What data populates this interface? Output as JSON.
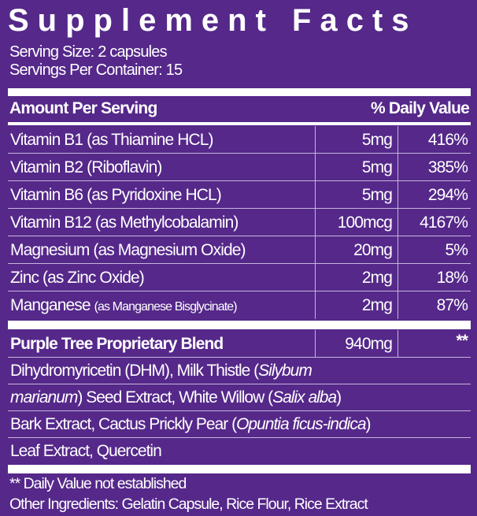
{
  "title": "Supplement Facts",
  "serving_size": "Serving Size: 2 capsules",
  "servings_per_container": "Servings Per Container: 15",
  "header": {
    "amount": "Amount Per Serving",
    "dv": "% Daily Value"
  },
  "nutrients": [
    {
      "name": "Vitamin B1 (as Thiamine HCL)",
      "amount": "5mg",
      "dv": "416%"
    },
    {
      "name": "Vitamin B2 (Riboflavin)",
      "amount": "5mg",
      "dv": "385%"
    },
    {
      "name": "Vitamin B6 (as Pyridoxine HCL)",
      "amount": "5mg",
      "dv": "294%"
    },
    {
      "name": "Vitamin B12 (as Methylcobalamin)",
      "amount": "100mcg",
      "dv": "4167%"
    },
    {
      "name": "Magnesium (as Magnesium Oxide)",
      "amount": "20mg",
      "dv": "5%"
    },
    {
      "name": "Zinc (as Zinc Oxide)",
      "amount": "2mg",
      "dv": "18%"
    },
    {
      "name": "Manganese",
      "name_detail": "(as Manganese Bisglycinate)",
      "amount": "2mg",
      "dv": "87%"
    }
  ],
  "blend": {
    "name": "Purple Tree Proprietary Blend",
    "amount": "940mg",
    "dv": "**"
  },
  "ingredients": {
    "l1a": "Dihydromyricetin (DHM), Milk Thistle (",
    "l1b": "Silybum",
    "l2a": "marianum",
    "l2b": ") Seed Extract, White Willow (",
    "l2c": "Salix alba",
    "l2d": ")",
    "l3a": "Bark Extract, Cactus Prickly Pear (",
    "l3b": "Opuntia ficus-indica",
    "l3c": ")",
    "l4": "Leaf Extract, Quercetin"
  },
  "footnote": "** Daily Value not established",
  "other_ingredients": "Other Ingredients: Gelatin Capsule, Rice Flour, Rice Extract",
  "colors": {
    "background": "#55288a",
    "text": "#ffffff"
  }
}
